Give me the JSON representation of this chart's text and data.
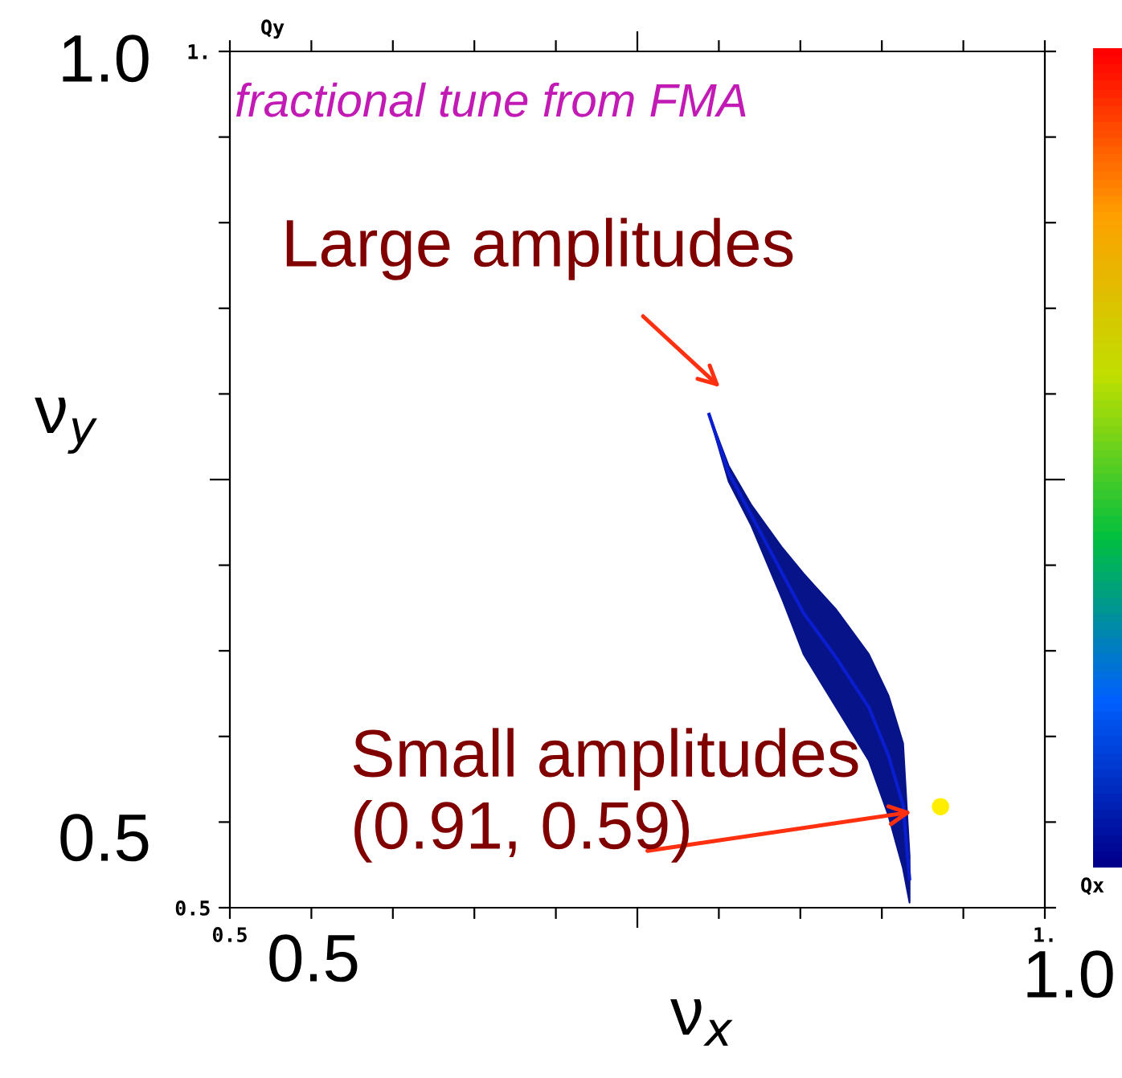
{
  "chart_data": {
    "type": "line",
    "xlabel": "ν$_{x}$",
    "ylabel": "ν$_{y}$",
    "xlim": [
      0.5,
      1.0
    ],
    "ylim": [
      0.5,
      1.0
    ],
    "xticks": [
      {
        "value": 0.5,
        "label": "0.5"
      },
      {
        "value": 0.55,
        "label": null
      },
      {
        "value": 0.6,
        "label": null
      },
      {
        "value": 0.65,
        "label": null
      },
      {
        "value": 0.7,
        "label": null
      },
      {
        "value": 0.75,
        "label": null
      },
      {
        "value": 0.8,
        "label": null
      },
      {
        "value": 0.85,
        "label": null
      },
      {
        "value": 0.9,
        "label": null
      },
      {
        "value": 0.95,
        "label": null
      },
      {
        "value": 1.0,
        "label": "1."
      }
    ],
    "yticks": [
      {
        "value": 0.5,
        "label": "0.5"
      },
      {
        "value": 0.55,
        "label": null
      },
      {
        "value": 0.6,
        "label": null
      },
      {
        "value": 0.65,
        "label": null
      },
      {
        "value": 0.7,
        "label": null
      },
      {
        "value": 0.75,
        "label": null
      },
      {
        "value": 0.8,
        "label": null
      },
      {
        "value": 0.85,
        "label": null
      },
      {
        "value": 0.9,
        "label": null
      },
      {
        "value": 0.95,
        "label": null
      },
      {
        "value": 1.0,
        "label": "1."
      }
    ],
    "grid": false,
    "series": [
      {
        "color": "#0a1ed0",
        "x": [
          0.794,
          0.806,
          0.82,
          0.839,
          0.852,
          0.872,
          0.892,
          0.904,
          0.913,
          0.917
        ],
        "values": [
          0.788,
          0.754,
          0.729,
          0.695,
          0.672,
          0.646,
          0.617,
          0.589,
          0.56,
          0.517
        ],
        "lower": [
          0.788,
          0.749,
          0.723,
          0.68,
          0.648,
          0.617,
          0.586,
          0.554,
          0.523,
          0.503
        ],
        "upper": [
          0.788,
          0.758,
          0.735,
          0.71,
          0.695,
          0.674,
          0.648,
          0.624,
          0.596,
          0.53
        ]
      },
      {
        "type": "scatter",
        "color": "#ffee00",
        "x": [
          0.936
        ],
        "values": [
          0.559
        ]
      }
    ],
    "annotations": [
      "fractional tune from FMA",
      "Large amplitudes",
      "Small amplitudes\n(0.91, 0.59)",
      "Qy",
      "Qx",
      "1.0",
      "0.5",
      "0.5",
      "1.0"
    ]
  }
}
